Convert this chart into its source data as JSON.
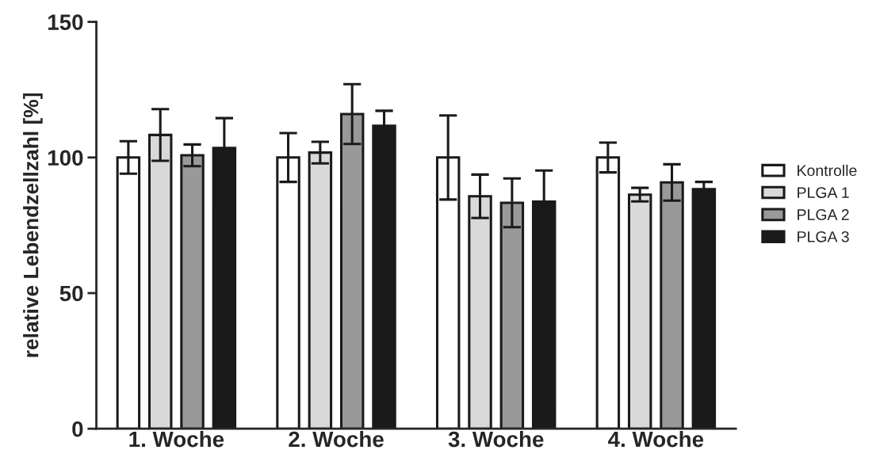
{
  "chart_data": {
    "type": "bar",
    "ylabel": "relative Lebendzellzahl [%]",
    "categories": [
      "1. Woche",
      "2. Woche",
      "3. Woche",
      "4. Woche"
    ],
    "series": [
      {
        "name": "Kontrolle",
        "color": "#ffffff",
        "values": [
          100,
          100,
          100,
          100
        ],
        "errors": [
          6,
          9,
          15.5,
          5.5
        ]
      },
      {
        "name": "PLGA 1",
        "color": "#d9d9d9",
        "values": [
          108.3,
          101.8,
          85.7,
          86.3
        ],
        "errors": [
          9.5,
          4,
          8,
          2.5
        ]
      },
      {
        "name": "PLGA 2",
        "color": "#999999",
        "values": [
          100.8,
          116,
          83.3,
          90.8
        ],
        "errors": [
          4,
          11,
          9,
          6.7
        ]
      },
      {
        "name": "PLGA 3",
        "color": "#1a1a1a",
        "values": [
          103.5,
          111.7,
          83.7,
          88.3
        ],
        "errors": [
          11,
          5.5,
          11.5,
          2.7
        ]
      }
    ],
    "ylim": [
      0,
      150
    ],
    "yticks": [
      0,
      50,
      100,
      150
    ],
    "grid": false,
    "legend": "right"
  }
}
